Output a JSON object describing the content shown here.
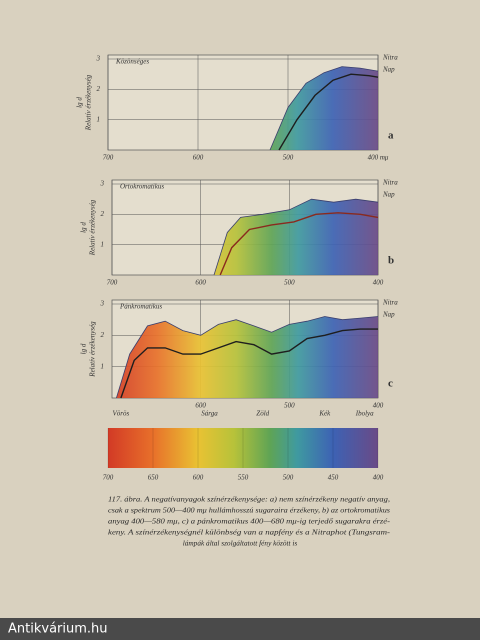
{
  "chart_data": [
    {
      "type": "area",
      "title": "Közönséges",
      "letter": "a",
      "ylabel": [
        "lg d",
        "Relatív érzékenység"
      ],
      "xlim": [
        700,
        400
      ],
      "xticks": [
        700,
        600,
        500,
        {
          "value": 400,
          "label": "400 mμ"
        }
      ],
      "ylim": [
        0,
        3
      ],
      "yticks": [
        1,
        2,
        3
      ],
      "grid": true,
      "series": [
        {
          "name": "Nitra",
          "color": "#3a3f6e",
          "x": [
            520,
            500,
            480,
            460,
            440,
            420,
            400
          ],
          "values": [
            0,
            1.4,
            2.2,
            2.55,
            2.75,
            2.7,
            2.6
          ]
        },
        {
          "name": "Nap",
          "color": "#1e1e1e",
          "x": [
            510,
            490,
            470,
            450,
            430,
            410,
            400
          ],
          "values": [
            0,
            1.0,
            1.8,
            2.3,
            2.5,
            2.45,
            2.4
          ]
        }
      ]
    },
    {
      "type": "area",
      "title": "Ortokromatikus",
      "letter": "b",
      "ylabel": [
        "lg d",
        "Relatív érzékenység"
      ],
      "xlim": [
        700,
        400
      ],
      "xticks": [
        700,
        600,
        500,
        400
      ],
      "ylim": [
        0,
        3
      ],
      "yticks": [
        1,
        2,
        3
      ],
      "grid": true,
      "series": [
        {
          "name": "Nitra",
          "color": "#3a3f6e",
          "x": [
            585,
            570,
            555,
            530,
            500,
            475,
            450,
            425,
            400
          ],
          "values": [
            0,
            1.4,
            1.9,
            2.0,
            2.15,
            2.5,
            2.4,
            2.5,
            2.4
          ]
        },
        {
          "name": "Nap",
          "color": "#8a2a1e",
          "x": [
            578,
            565,
            545,
            520,
            495,
            470,
            445,
            420,
            400
          ],
          "values": [
            0,
            0.9,
            1.5,
            1.65,
            1.75,
            2.0,
            2.05,
            2.0,
            1.9
          ]
        }
      ]
    },
    {
      "type": "area",
      "title": "Pánkromatikus",
      "letter": "c",
      "ylabel": [
        "lg d",
        "Relatív érzékenység"
      ],
      "xlim": [
        700,
        400
      ],
      "xticks": [
        600,
        500,
        400
      ],
      "color_labels": [
        {
          "value": 690,
          "label": "Vörös"
        },
        {
          "value": 590,
          "label": "Sárga"
        },
        {
          "value": 530,
          "label": "Zöld"
        },
        {
          "value": 460,
          "label": "Kék"
        },
        {
          "value": 415,
          "label": "Ibolya"
        }
      ],
      "ylim": [
        0,
        3
      ],
      "yticks": [
        1,
        2,
        3
      ],
      "grid": true,
      "series": [
        {
          "name": "Nitra",
          "color": "#3a3f6e",
          "x": [
            695,
            680,
            660,
            640,
            620,
            600,
            580,
            560,
            540,
            520,
            500,
            480,
            460,
            440,
            420,
            400
          ],
          "values": [
            0,
            1.4,
            2.3,
            2.45,
            2.15,
            2.0,
            2.35,
            2.5,
            2.3,
            2.1,
            2.35,
            2.45,
            2.6,
            2.5,
            2.55,
            2.6
          ]
        },
        {
          "name": "Nap",
          "color": "#1e1e1e",
          "x": [
            690,
            675,
            660,
            640,
            620,
            600,
            580,
            560,
            540,
            520,
            500,
            480,
            460,
            440,
            420,
            400
          ],
          "values": [
            0,
            1.2,
            1.6,
            1.6,
            1.4,
            1.4,
            1.6,
            1.8,
            1.7,
            1.4,
            1.5,
            1.9,
            2.0,
            2.15,
            2.2,
            2.2
          ]
        }
      ]
    },
    {
      "type": "spectrum",
      "xlim": [
        700,
        400
      ],
      "xticks": [
        700,
        650,
        600,
        550,
        500,
        450,
        400
      ]
    }
  ],
  "caption": [
    "117. ábra. A negatívanyagok színérzékenysége: a) nem színérzékeny negatív anyag,",
    "csak a spektrum 500—400 mμ hullámhosszú sugaraira érzékeny, b) az ortokromatikus",
    "anyag 400—580 mμ, c) a pánkromatikus 400—680 mμ-ig terjedő sugarakra érzé-",
    "keny. A színérzékenységnél különbség van a napfény és a Nitraphot (Tungsram-",
    "lámpák által szolgáltatott fény között is"
  ],
  "watermark": "Antikvárium.hu"
}
